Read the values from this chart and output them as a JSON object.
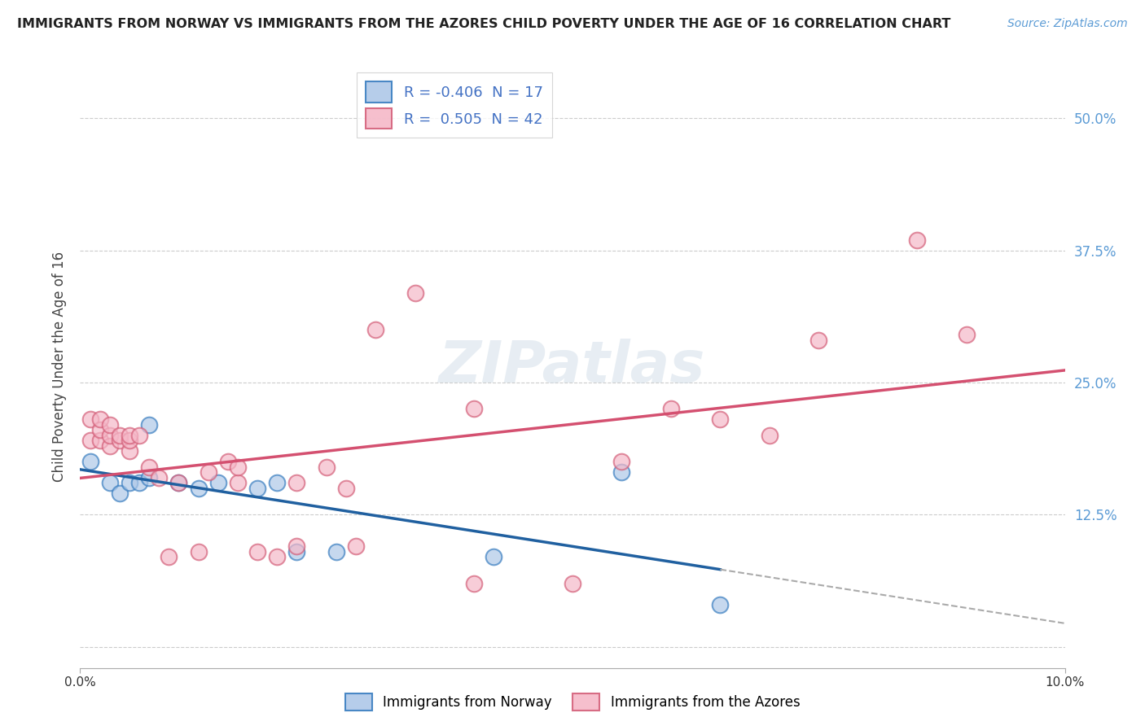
{
  "title": "IMMIGRANTS FROM NORWAY VS IMMIGRANTS FROM THE AZORES CHILD POVERTY UNDER THE AGE OF 16 CORRELATION CHART",
  "source": "Source: ZipAtlas.com",
  "ylabel": "Child Poverty Under the Age of 16",
  "xlim": [
    0.0,
    0.1
  ],
  "ylim": [
    -0.02,
    0.55
  ],
  "yticks": [
    0.0,
    0.125,
    0.25,
    0.375,
    0.5
  ],
  "ytick_labels": [
    "",
    "12.5%",
    "25.0%",
    "37.5%",
    "50.0%"
  ],
  "legend_norway_R": "-0.406",
  "legend_norway_N": "17",
  "legend_azores_R": "0.505",
  "legend_azores_N": "42",
  "norway_fill_color": "#aec8e8",
  "norway_edge_color": "#3a7ec0",
  "azores_fill_color": "#f5b8c8",
  "azores_edge_color": "#d4607a",
  "norway_line_color": "#2060a0",
  "azores_line_color": "#d45070",
  "norway_scatter": [
    [
      0.001,
      0.175
    ],
    [
      0.003,
      0.155
    ],
    [
      0.004,
      0.145
    ],
    [
      0.005,
      0.155
    ],
    [
      0.006,
      0.155
    ],
    [
      0.007,
      0.16
    ],
    [
      0.007,
      0.21
    ],
    [
      0.01,
      0.155
    ],
    [
      0.012,
      0.15
    ],
    [
      0.014,
      0.155
    ],
    [
      0.018,
      0.15
    ],
    [
      0.02,
      0.155
    ],
    [
      0.022,
      0.09
    ],
    [
      0.026,
      0.09
    ],
    [
      0.042,
      0.085
    ],
    [
      0.055,
      0.165
    ],
    [
      0.065,
      0.04
    ]
  ],
  "azores_scatter": [
    [
      0.001,
      0.195
    ],
    [
      0.001,
      0.215
    ],
    [
      0.002,
      0.195
    ],
    [
      0.002,
      0.205
    ],
    [
      0.002,
      0.215
    ],
    [
      0.003,
      0.19
    ],
    [
      0.003,
      0.2
    ],
    [
      0.003,
      0.21
    ],
    [
      0.004,
      0.195
    ],
    [
      0.004,
      0.2
    ],
    [
      0.005,
      0.185
    ],
    [
      0.005,
      0.195
    ],
    [
      0.005,
      0.2
    ],
    [
      0.006,
      0.2
    ],
    [
      0.007,
      0.17
    ],
    [
      0.008,
      0.16
    ],
    [
      0.009,
      0.085
    ],
    [
      0.01,
      0.155
    ],
    [
      0.012,
      0.09
    ],
    [
      0.013,
      0.165
    ],
    [
      0.015,
      0.175
    ],
    [
      0.016,
      0.155
    ],
    [
      0.016,
      0.17
    ],
    [
      0.018,
      0.09
    ],
    [
      0.02,
      0.085
    ],
    [
      0.022,
      0.095
    ],
    [
      0.022,
      0.155
    ],
    [
      0.025,
      0.17
    ],
    [
      0.027,
      0.15
    ],
    [
      0.028,
      0.095
    ],
    [
      0.03,
      0.3
    ],
    [
      0.034,
      0.335
    ],
    [
      0.04,
      0.225
    ],
    [
      0.04,
      0.06
    ],
    [
      0.05,
      0.06
    ],
    [
      0.055,
      0.175
    ],
    [
      0.06,
      0.225
    ],
    [
      0.065,
      0.215
    ],
    [
      0.07,
      0.2
    ],
    [
      0.075,
      0.29
    ],
    [
      0.085,
      0.385
    ],
    [
      0.09,
      0.295
    ]
  ],
  "background_color": "#ffffff",
  "watermark_text": "ZIPatlas",
  "grid_color": "#cccccc",
  "tick_label_color": "#5b9bd5",
  "ylabel_color": "#444444"
}
